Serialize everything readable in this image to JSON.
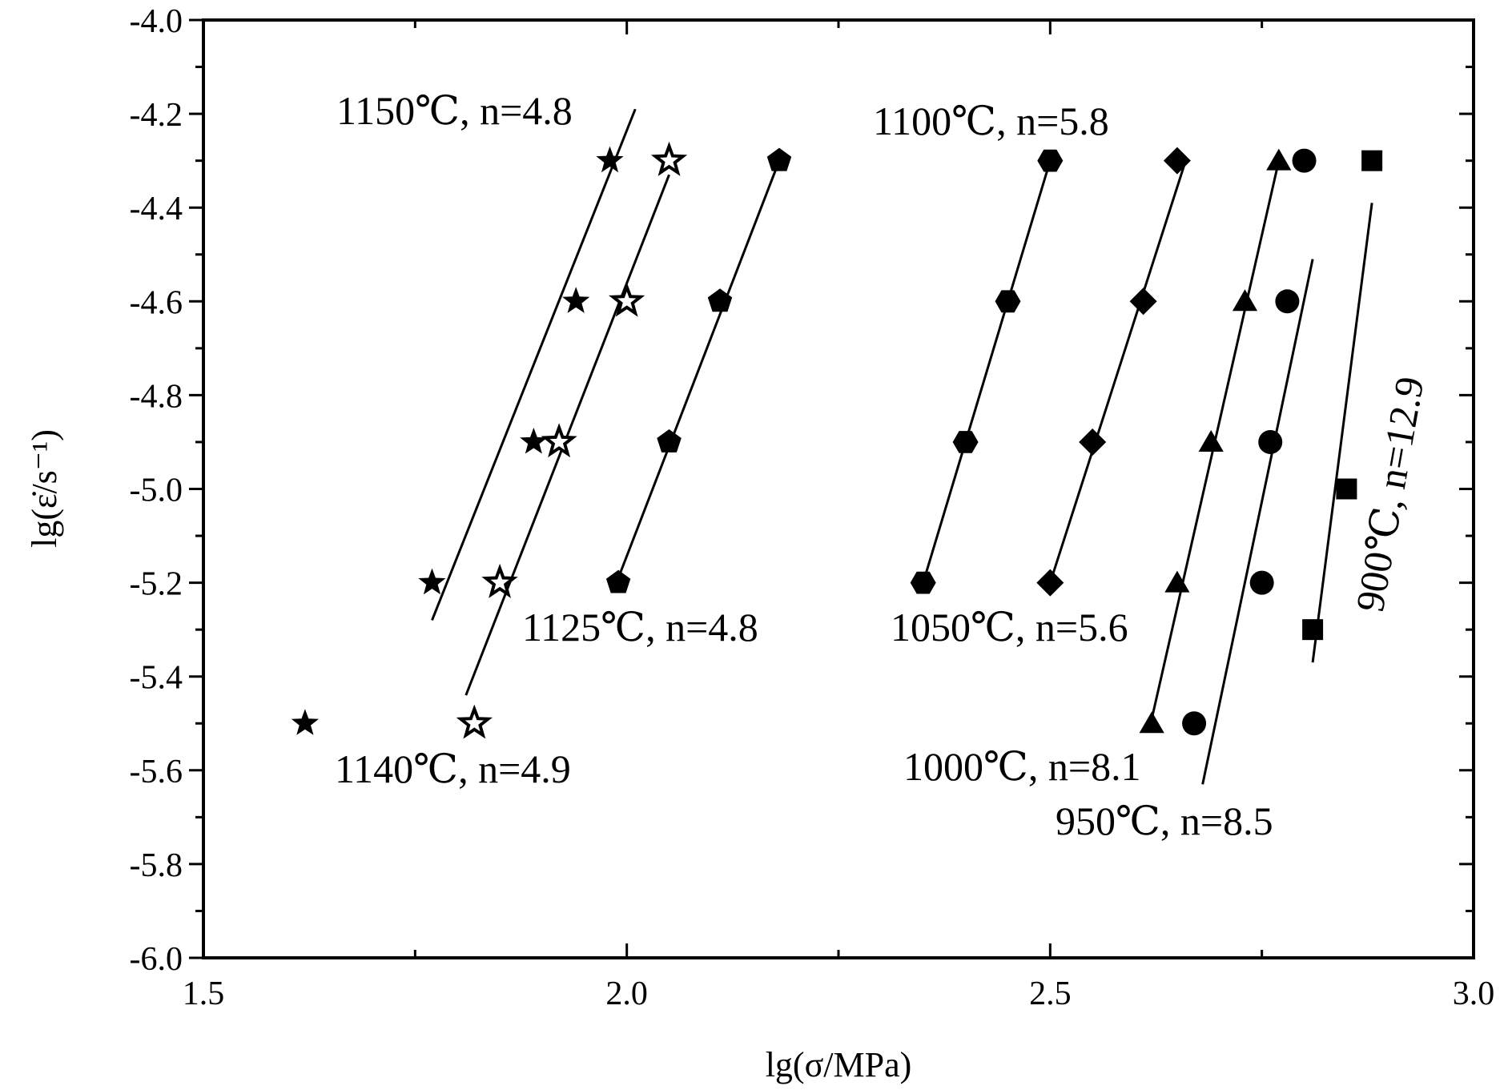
{
  "chart_data": {
    "type": "scatter",
    "title": "",
    "xlabel": "lg(σ/MPa)",
    "ylabel": "lg(ε̇/s⁻¹)",
    "xlim": [
      1.5,
      3.0
    ],
    "ylim": [
      -6.0,
      -4.0
    ],
    "x_ticks": [
      1.5,
      2.0,
      2.5,
      3.0
    ],
    "x_tick_labels": [
      "1.5",
      "2.0",
      "2.5",
      "3.0"
    ],
    "y_ticks": [
      -4.0,
      -4.2,
      -4.4,
      -4.6,
      -4.8,
      -5.0,
      -5.2,
      -5.4,
      -5.6,
      -5.8,
      -6.0
    ],
    "y_tick_labels": [
      "-4.0",
      "-4.2",
      "-4.4",
      "-4.6",
      "-4.8",
      "-5.0",
      "-5.2",
      "-5.4",
      "-5.6",
      "-5.8",
      "-6.0"
    ],
    "grid": false,
    "legend": "none",
    "series": [
      {
        "label": "1150℃, n=4.8",
        "temperature": "1150℃",
        "n": "4.8",
        "marker": "star-filled",
        "points": [
          [
            1.62,
            -5.5
          ],
          [
            1.77,
            -5.2
          ],
          [
            1.89,
            -4.9
          ],
          [
            1.94,
            -4.6
          ],
          [
            1.98,
            -4.3
          ]
        ],
        "fit": [
          [
            1.77,
            -5.28
          ],
          [
            2.01,
            -4.19
          ]
        ]
      },
      {
        "label": "1140℃, n=4.9",
        "temperature": "1140℃",
        "n": "4.9",
        "marker": "star-open",
        "points": [
          [
            1.82,
            -5.5
          ],
          [
            1.85,
            -5.2
          ],
          [
            1.92,
            -4.9
          ],
          [
            2.0,
            -4.6
          ],
          [
            2.05,
            -4.3
          ]
        ],
        "fit": [
          [
            1.81,
            -5.44
          ],
          [
            2.05,
            -4.33
          ]
        ]
      },
      {
        "label": "1125℃, n=4.8",
        "temperature": "1125℃",
        "n": "4.8",
        "marker": "pentagon",
        "points": [
          [
            1.99,
            -5.2
          ],
          [
            2.05,
            -4.9
          ],
          [
            2.11,
            -4.6
          ],
          [
            2.18,
            -4.3
          ]
        ],
        "fit": [
          [
            1.99,
            -5.19
          ],
          [
            2.18,
            -4.3
          ]
        ]
      },
      {
        "label": "1100℃, n=5.8",
        "temperature": "1100℃",
        "n": "5.8",
        "marker": "hexagon",
        "points": [
          [
            2.35,
            -5.2
          ],
          [
            2.4,
            -4.9
          ],
          [
            2.45,
            -4.6
          ],
          [
            2.5,
            -4.3
          ]
        ],
        "fit": [
          [
            2.35,
            -5.2
          ],
          [
            2.5,
            -4.3
          ]
        ]
      },
      {
        "label": "1050℃, n=5.6",
        "temperature": "1050℃",
        "n": "5.6",
        "marker": "diamond",
        "points": [
          [
            2.5,
            -5.2
          ],
          [
            2.55,
            -4.9
          ],
          [
            2.61,
            -4.6
          ],
          [
            2.65,
            -4.3
          ]
        ],
        "fit": [
          [
            2.5,
            -5.2
          ],
          [
            2.66,
            -4.3
          ]
        ]
      },
      {
        "label": "1000℃, n=8.1",
        "temperature": "1000℃",
        "n": "8.1",
        "marker": "triangle",
        "points": [
          [
            2.62,
            -5.5
          ],
          [
            2.65,
            -5.2
          ],
          [
            2.69,
            -4.9
          ],
          [
            2.73,
            -4.6
          ],
          [
            2.77,
            -4.3
          ]
        ],
        "fit": [
          [
            2.62,
            -5.49
          ],
          [
            2.77,
            -4.3
          ]
        ]
      },
      {
        "label": "950℃, n=8.5",
        "temperature": "950℃",
        "n": "8.5",
        "marker": "circle",
        "points": [
          [
            2.67,
            -5.5
          ],
          [
            2.75,
            -5.2
          ],
          [
            2.76,
            -4.9
          ],
          [
            2.78,
            -4.6
          ],
          [
            2.8,
            -4.3
          ]
        ],
        "fit": [
          [
            2.68,
            -5.63
          ],
          [
            2.81,
            -4.51
          ]
        ]
      },
      {
        "label": "900℃, n=12.9",
        "temperature": "900℃",
        "n": "12.9",
        "marker": "square",
        "points": [
          [
            2.81,
            -5.3
          ],
          [
            2.85,
            -5.0
          ],
          [
            2.88,
            -4.3
          ]
        ],
        "fit": [
          [
            2.81,
            -5.37
          ],
          [
            2.88,
            -4.39
          ]
        ]
      }
    ]
  }
}
